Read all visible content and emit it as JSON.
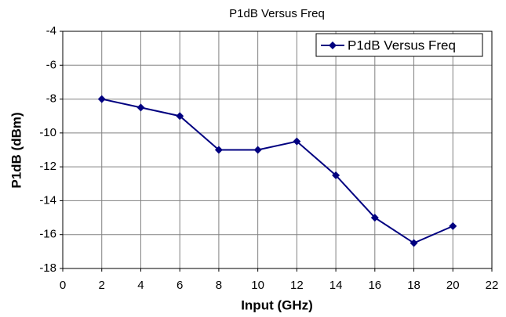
{
  "chart_data": {
    "type": "line",
    "title": "P1dB Versus Freq",
    "x_label": "Input (GHz)",
    "y_label": "P1dB (dBm)",
    "x": [
      2,
      4,
      6,
      8,
      10,
      12,
      14,
      16,
      18,
      20
    ],
    "series": [
      {
        "name": "P1dB Versus Freq",
        "color": "#000080",
        "values": [
          -8,
          -8.5,
          -9,
          -11,
          -11,
          -10.5,
          -12.5,
          -15,
          -16.5,
          -15.5
        ]
      }
    ],
    "xlim": [
      0,
      22
    ],
    "xticks": [
      0,
      2,
      4,
      6,
      8,
      10,
      12,
      14,
      16,
      18,
      20,
      22
    ],
    "ylim": [
      -18,
      -4
    ],
    "yticks": [
      -18,
      -16,
      -14,
      -12,
      -10,
      -8,
      -6,
      -4
    ],
    "grid": true,
    "legend": "upper right"
  }
}
